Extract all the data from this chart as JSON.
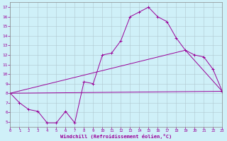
{
  "xlabel": "Windchill (Refroidissement éolien,°C)",
  "xlim": [
    0,
    23
  ],
  "ylim": [
    4.5,
    17.5
  ],
  "xticks": [
    0,
    1,
    2,
    3,
    4,
    5,
    6,
    7,
    8,
    9,
    10,
    11,
    12,
    13,
    14,
    15,
    16,
    17,
    18,
    19,
    20,
    21,
    22,
    23
  ],
  "yticks": [
    5,
    6,
    7,
    8,
    9,
    10,
    11,
    12,
    13,
    14,
    15,
    16,
    17
  ],
  "bg_color": "#cff0f8",
  "line_color": "#990099",
  "grid_color": "#b0c8d0",
  "line1_x": [
    0,
    1,
    2,
    3,
    4,
    5,
    6,
    7,
    8,
    9,
    10,
    11,
    12,
    13,
    14,
    15,
    16,
    17,
    18,
    19,
    20,
    21,
    22,
    23
  ],
  "line1_y": [
    8.0,
    7.0,
    6.3,
    6.1,
    4.9,
    4.9,
    6.1,
    4.9,
    9.2,
    9.0,
    12.0,
    12.2,
    13.5,
    16.0,
    16.5,
    17.0,
    16.0,
    15.5,
    13.8,
    12.5,
    12.0,
    11.8,
    10.5,
    8.2
  ],
  "line2_x": [
    0,
    23
  ],
  "line2_y": [
    8.0,
    8.2
  ],
  "line3_x": [
    0,
    19,
    23
  ],
  "line3_y": [
    8.0,
    12.5,
    8.2
  ],
  "marker_x": [
    0,
    1,
    2,
    3,
    4,
    5,
    6,
    7,
    8,
    9,
    10,
    11,
    12,
    13,
    14,
    15,
    16,
    17,
    18,
    19,
    20,
    21,
    22,
    23
  ],
  "marker_y": [
    8.0,
    7.0,
    6.3,
    6.1,
    4.9,
    4.9,
    6.1,
    4.9,
    9.2,
    9.0,
    12.0,
    12.2,
    13.5,
    16.0,
    16.5,
    17.0,
    16.0,
    15.5,
    13.8,
    12.5,
    12.0,
    11.8,
    10.5,
    8.2
  ]
}
